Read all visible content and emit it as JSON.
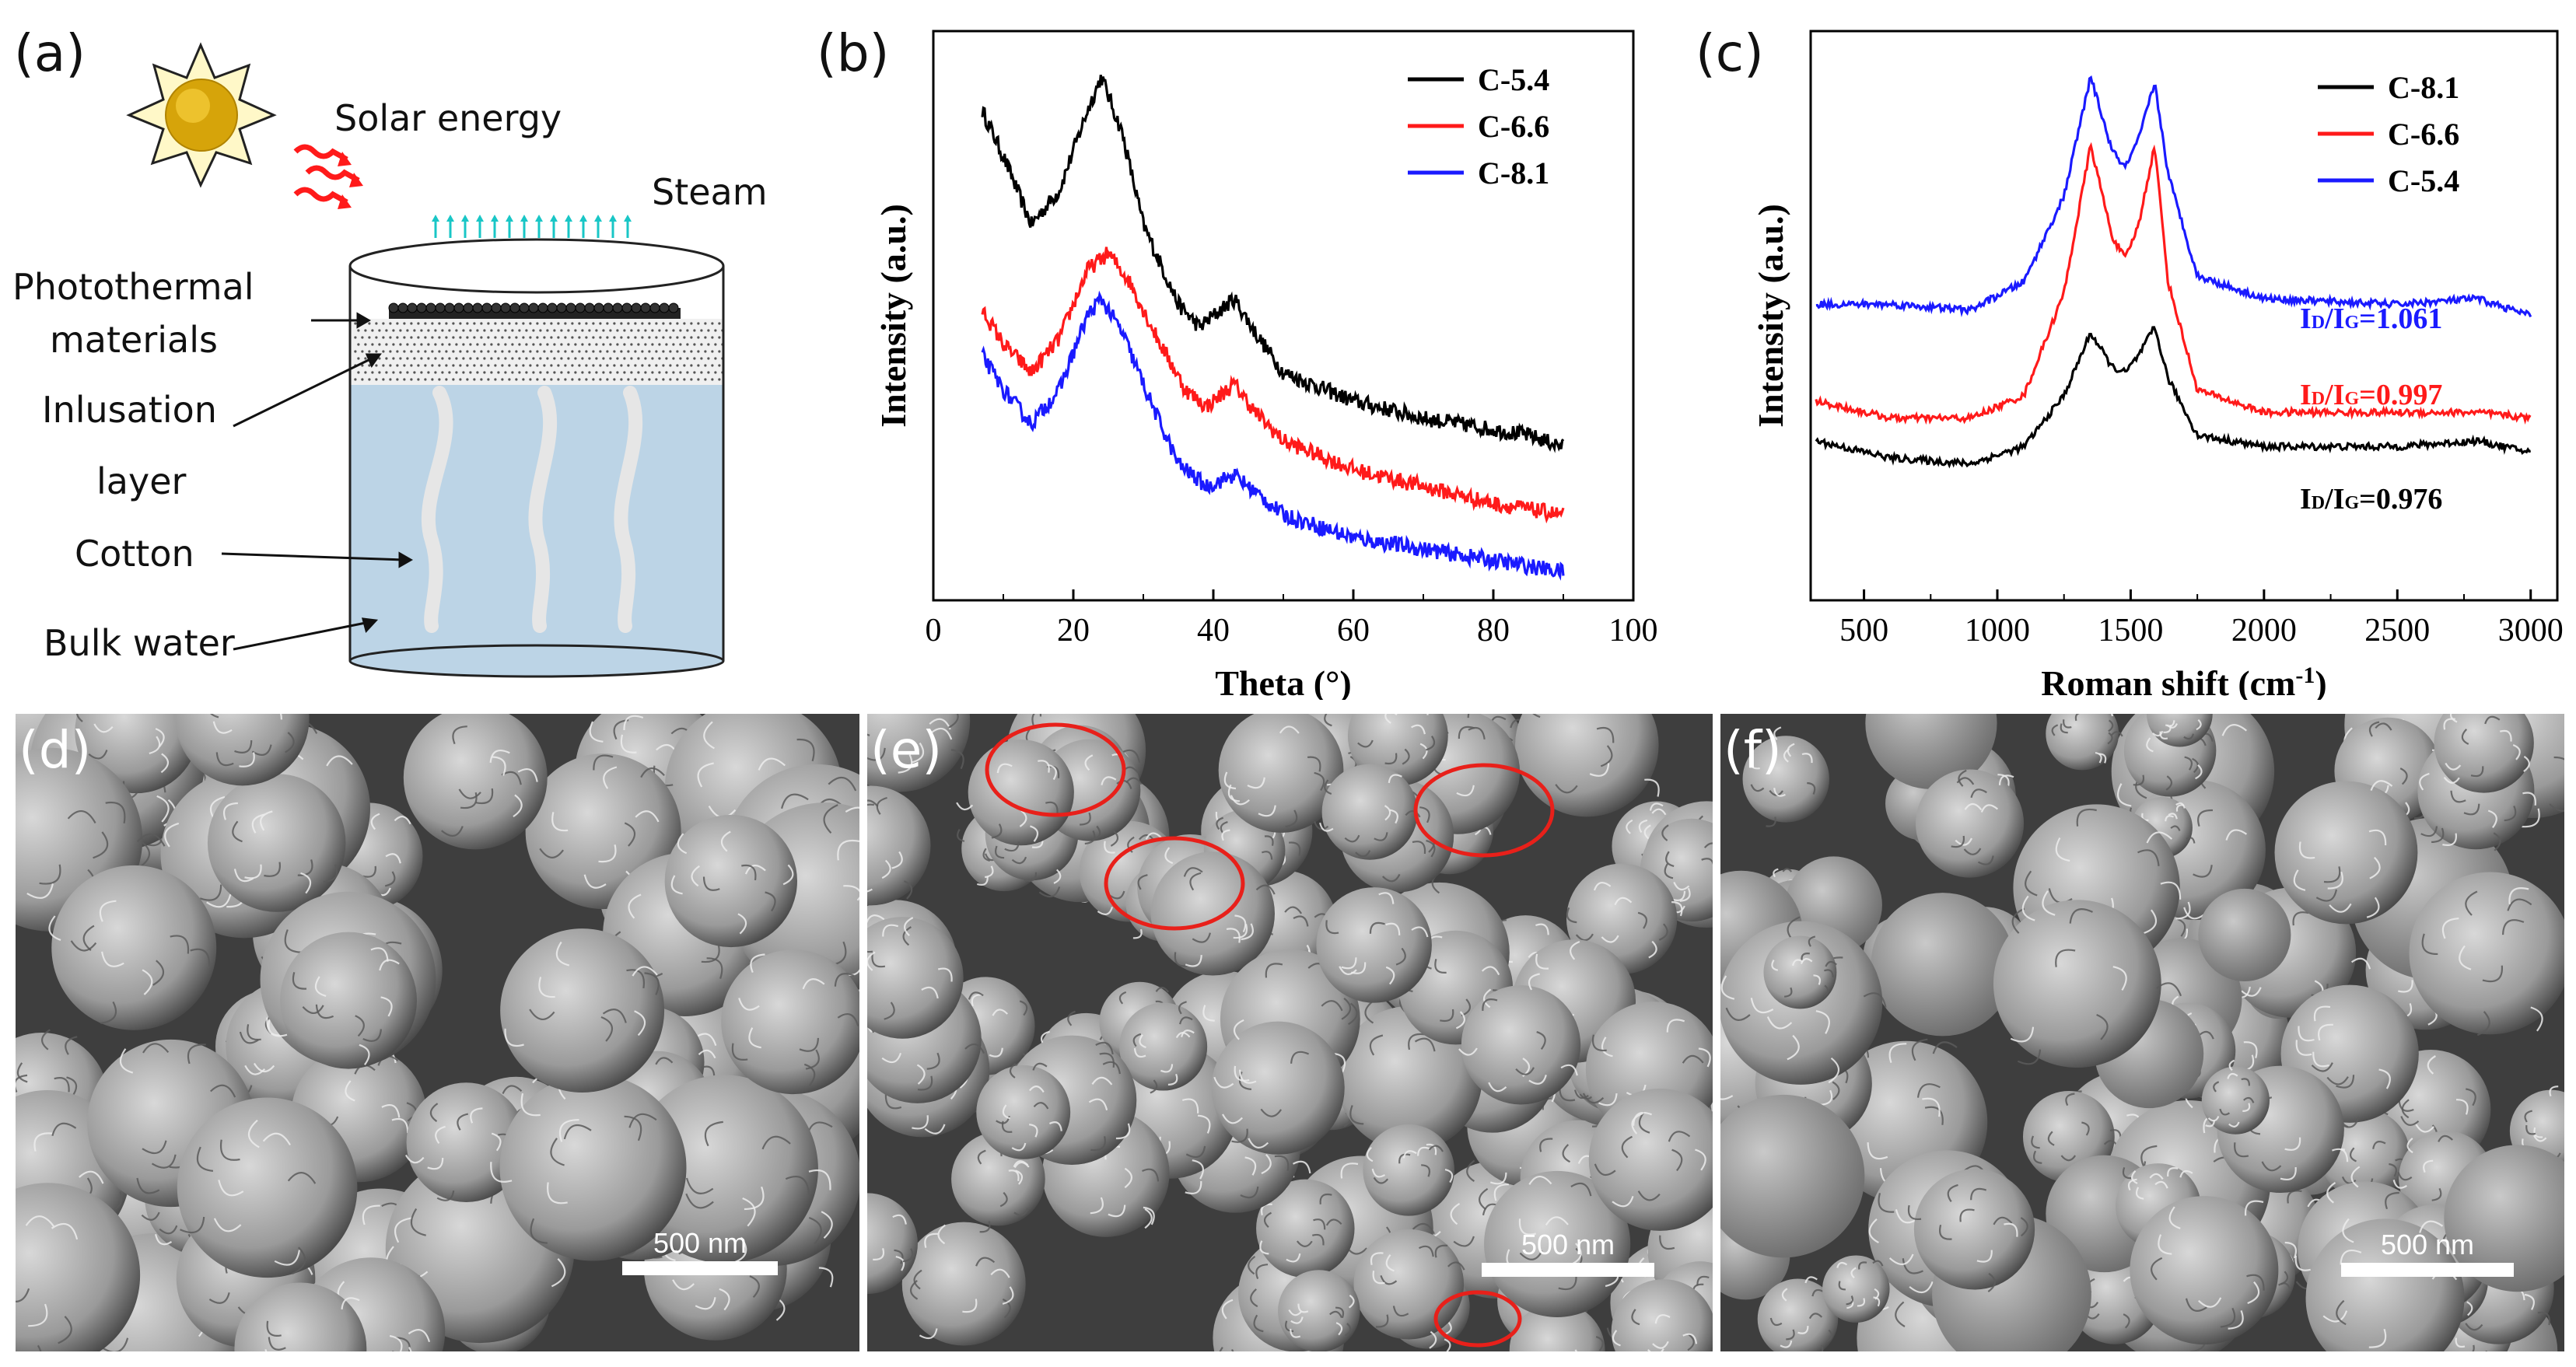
{
  "panels": {
    "a": "(a)",
    "b": "(b)",
    "c": "(c)",
    "d": "(d)",
    "e": "(e)",
    "f": "(f)"
  },
  "diagram": {
    "solar": "Solar energy",
    "steam": "Steam",
    "photothermal_1": "Photothermal",
    "photothermal_2": "materials",
    "insulation_1": "Inlusation",
    "insulation_2": "layer",
    "cotton": "Cotton",
    "bulk_water": "Bulk water"
  },
  "scalebar": {
    "d": "500 nm",
    "e": "500 nm",
    "f": "500 nm"
  },
  "colors": {
    "black": "#000000",
    "red": "#ff1a1a",
    "blue": "#1a1aff",
    "water": "#bcd4e6",
    "ellipse": "#e8201a"
  },
  "chart_data": [
    {
      "type": "line",
      "panel": "b",
      "xlabel": "Theta (°)",
      "ylabel": "Intensity (a.u.)",
      "xlim": [
        0,
        100
      ],
      "x_ticks": [
        "0",
        "20",
        "40",
        "60",
        "80",
        "100"
      ],
      "y_ticks": false,
      "legend_placement": "top-right",
      "series": [
        {
          "name": "C-5.4",
          "color": "#000000",
          "points": [
            [
              7,
              0.86
            ],
            [
              10,
              0.78
            ],
            [
              14,
              0.66
            ],
            [
              18,
              0.72
            ],
            [
              22,
              0.86
            ],
            [
              24,
              0.92
            ],
            [
              27,
              0.82
            ],
            [
              30,
              0.66
            ],
            [
              35,
              0.52
            ],
            [
              38,
              0.48
            ],
            [
              43,
              0.53
            ],
            [
              46,
              0.47
            ],
            [
              50,
              0.4
            ],
            [
              60,
              0.35
            ],
            [
              70,
              0.32
            ],
            [
              80,
              0.3
            ],
            [
              85,
              0.29
            ],
            [
              90,
              0.27
            ]
          ]
        },
        {
          "name": "C-6.6",
          "color": "#ff1a1a",
          "points": [
            [
              7,
              0.51
            ],
            [
              10,
              0.45
            ],
            [
              14,
              0.4
            ],
            [
              18,
              0.46
            ],
            [
              22,
              0.58
            ],
            [
              25,
              0.61
            ],
            [
              28,
              0.56
            ],
            [
              32,
              0.46
            ],
            [
              36,
              0.37
            ],
            [
              39,
              0.34
            ],
            [
              43,
              0.38
            ],
            [
              46,
              0.33
            ],
            [
              50,
              0.28
            ],
            [
              60,
              0.23
            ],
            [
              70,
              0.2
            ],
            [
              80,
              0.17
            ],
            [
              90,
              0.15
            ]
          ]
        },
        {
          "name": "C-8.1",
          "color": "#1a1aff",
          "points": [
            [
              7,
              0.43
            ],
            [
              10,
              0.37
            ],
            [
              14,
              0.31
            ],
            [
              18,
              0.37
            ],
            [
              22,
              0.5
            ],
            [
              24,
              0.53
            ],
            [
              27,
              0.47
            ],
            [
              31,
              0.35
            ],
            [
              35,
              0.24
            ],
            [
              39,
              0.2
            ],
            [
              43,
              0.22
            ],
            [
              46,
              0.19
            ],
            [
              50,
              0.15
            ],
            [
              60,
              0.11
            ],
            [
              70,
              0.09
            ],
            [
              80,
              0.07
            ],
            [
              90,
              0.05
            ]
          ]
        }
      ]
    },
    {
      "type": "line",
      "panel": "c",
      "xlabel": "Roman shift (cm",
      "xlabel_sup": "-1",
      "xlabel_end": ")",
      "ylabel": "Intensity (a.u.)",
      "xlim": [
        300,
        3100
      ],
      "x_ticks": [
        "500",
        "1000",
        "1500",
        "2000",
        "2500",
        "3000"
      ],
      "y_ticks": false,
      "legend_placement": "top-right",
      "ratio_d": "I",
      "ratio_d_sub": "D",
      "ratio_g": "/I",
      "ratio_g_sub": "G",
      "series": [
        {
          "name": "C-8.1",
          "color": "#000000",
          "ratio_value": "=0.976",
          "ratio_color": "#000000",
          "points": [
            [
              320,
              0.28
            ],
            [
              600,
              0.25
            ],
            [
              900,
              0.24
            ],
            [
              1100,
              0.27
            ],
            [
              1250,
              0.36
            ],
            [
              1350,
              0.47
            ],
            [
              1430,
              0.41
            ],
            [
              1480,
              0.4
            ],
            [
              1530,
              0.43
            ],
            [
              1590,
              0.48
            ],
            [
              1640,
              0.39
            ],
            [
              1750,
              0.29
            ],
            [
              2000,
              0.27
            ],
            [
              2500,
              0.27
            ],
            [
              2800,
              0.28
            ],
            [
              3000,
              0.26
            ]
          ]
        },
        {
          "name": "C-6.6",
          "color": "#ff1a1a",
          "ratio_value": "=0.997",
          "ratio_color": "#ff1a1a",
          "points": [
            [
              320,
              0.35
            ],
            [
              600,
              0.32
            ],
            [
              900,
              0.32
            ],
            [
              1100,
              0.36
            ],
            [
              1250,
              0.54
            ],
            [
              1350,
              0.8
            ],
            [
              1430,
              0.64
            ],
            [
              1480,
              0.6
            ],
            [
              1530,
              0.66
            ],
            [
              1590,
              0.8
            ],
            [
              1640,
              0.56
            ],
            [
              1750,
              0.37
            ],
            [
              2000,
              0.33
            ],
            [
              2500,
              0.33
            ],
            [
              2800,
              0.33
            ],
            [
              3000,
              0.32
            ]
          ]
        },
        {
          "name": "C-5.4",
          "color": "#1a1aff",
          "ratio_value": "=1.061",
          "ratio_color": "#1a1aff",
          "points": [
            [
              320,
              0.52
            ],
            [
              600,
              0.52
            ],
            [
              900,
              0.51
            ],
            [
              1100,
              0.56
            ],
            [
              1250,
              0.71
            ],
            [
              1350,
              0.92
            ],
            [
              1430,
              0.79
            ],
            [
              1480,
              0.76
            ],
            [
              1530,
              0.81
            ],
            [
              1590,
              0.91
            ],
            [
              1640,
              0.75
            ],
            [
              1750,
              0.57
            ],
            [
              2000,
              0.53
            ],
            [
              2500,
              0.52
            ],
            [
              2800,
              0.53
            ],
            [
              3000,
              0.5
            ]
          ]
        }
      ]
    }
  ]
}
